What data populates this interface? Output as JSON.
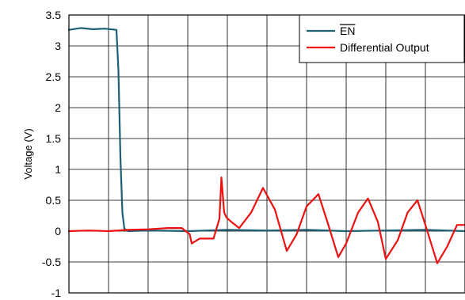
{
  "chart_data": {
    "type": "line",
    "ylabel": "Voltage (V)",
    "ylim": [
      -1,
      3.5
    ],
    "xlim": [
      0,
      10
    ],
    "grid": true,
    "x_divisions": 10,
    "yticks": [
      {
        "value": 3.5,
        "label": "3.5"
      },
      {
        "value": 3,
        "label": "3"
      },
      {
        "value": 2.5,
        "label": "2.5"
      },
      {
        "value": 2,
        "label": "2"
      },
      {
        "value": 1.5,
        "label": "1.5"
      },
      {
        "value": 1,
        "label": "1"
      },
      {
        "value": 0.5,
        "label": "0.5"
      },
      {
        "value": 0,
        "label": "0"
      },
      {
        "value": -0.5,
        "label": "-0.5"
      },
      {
        "value": -1,
        "label": "-1"
      }
    ],
    "legend_position": "top-right",
    "series": [
      {
        "name": "EN",
        "name_overline": true,
        "color": "#1f5f73",
        "x": [
          0,
          0.3,
          0.6,
          0.9,
          1.2,
          1.25,
          1.3,
          1.35,
          1.4,
          1.5,
          2.0,
          3.0,
          4.0,
          5.0,
          6.0,
          7.0,
          8.0,
          9.0,
          10.0
        ],
        "y": [
          3.26,
          3.29,
          3.27,
          3.28,
          3.26,
          2.6,
          1.2,
          0.3,
          0.04,
          0.0,
          0.01,
          0.0,
          0.02,
          0.01,
          0.02,
          0.0,
          0.01,
          0.02,
          0.0
        ]
      },
      {
        "name": "Differential Output",
        "color": "#ee1111",
        "x": [
          0,
          0.5,
          1.0,
          1.5,
          2.0,
          2.5,
          2.85,
          3.05,
          3.1,
          3.3,
          3.65,
          3.8,
          3.85,
          3.92,
          3.98,
          4.1,
          4.3,
          4.6,
          4.9,
          5.2,
          5.5,
          5.75,
          6.0,
          6.3,
          6.55,
          6.8,
          7.0,
          7.3,
          7.55,
          7.8,
          8.0,
          8.3,
          8.55,
          8.8,
          9.0,
          9.3,
          9.55,
          9.8,
          10.0
        ],
        "y": [
          0.0,
          0.01,
          0.0,
          0.02,
          0.03,
          0.05,
          0.05,
          -0.05,
          -0.2,
          -0.12,
          -0.12,
          0.2,
          0.87,
          0.3,
          0.22,
          0.15,
          0.05,
          0.3,
          0.7,
          0.35,
          -0.32,
          -0.05,
          0.4,
          0.6,
          0.1,
          -0.42,
          -0.2,
          0.3,
          0.53,
          0.15,
          -0.45,
          -0.15,
          0.3,
          0.5,
          0.1,
          -0.52,
          -0.25,
          0.1,
          0.1
        ]
      }
    ]
  }
}
